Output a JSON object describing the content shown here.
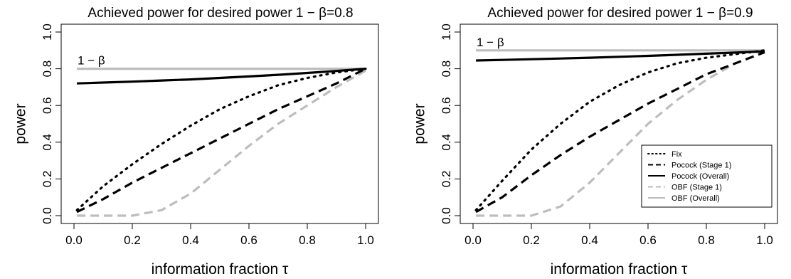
{
  "chart_data": [
    {
      "type": "line",
      "title": "Achieved power for desired power 1 − β=0.8",
      "xlabel": "information fraction τ",
      "ylabel": "power",
      "xlim": [
        0,
        1
      ],
      "ylim": [
        0,
        1
      ],
      "xticks": [
        "0.0",
        "0.2",
        "0.4",
        "0.6",
        "0.8",
        "1.0"
      ],
      "yticks": [
        "0.0",
        "0.2",
        "0.4",
        "0.6",
        "0.8",
        "1.0"
      ],
      "grid": false,
      "annotation": "1 − β",
      "x": [
        0.01,
        0.1,
        0.2,
        0.3,
        0.4,
        0.5,
        0.6,
        0.7,
        0.8,
        0.9,
        1.0
      ],
      "series": [
        {
          "name": "Fix",
          "style": "dotted",
          "color": "#000000",
          "values": [
            0.03,
            0.16,
            0.28,
            0.39,
            0.49,
            0.58,
            0.65,
            0.71,
            0.75,
            0.78,
            0.8
          ]
        },
        {
          "name": "Pocock (Stage 1)",
          "style": "dashed",
          "color": "#000000",
          "values": [
            0.02,
            0.09,
            0.18,
            0.26,
            0.34,
            0.42,
            0.5,
            0.58,
            0.65,
            0.72,
            0.8
          ]
        },
        {
          "name": "Pocock (Overall)",
          "style": "solid",
          "color": "#000000",
          "values": [
            0.72,
            0.725,
            0.73,
            0.736,
            0.742,
            0.75,
            0.758,
            0.767,
            0.777,
            0.788,
            0.8
          ]
        },
        {
          "name": "OBF (Stage 1)",
          "style": "dashed",
          "color": "#bdbdbd",
          "values": [
            0.0,
            0.0,
            0.0,
            0.03,
            0.12,
            0.25,
            0.38,
            0.5,
            0.6,
            0.7,
            0.79
          ]
        },
        {
          "name": "OBF (Overall)",
          "style": "solid",
          "color": "#bdbdbd",
          "values": [
            0.8,
            0.8,
            0.8,
            0.8,
            0.8,
            0.8,
            0.8,
            0.8,
            0.8,
            0.8,
            0.8
          ]
        }
      ]
    },
    {
      "type": "line",
      "title": "Achieved power for desired power 1 − β=0.9",
      "xlabel": "information fraction τ",
      "ylabel": "power",
      "xlim": [
        0,
        1
      ],
      "ylim": [
        0,
        1
      ],
      "xticks": [
        "0.0",
        "0.2",
        "0.4",
        "0.6",
        "0.8",
        "1.0"
      ],
      "yticks": [
        "0.0",
        "0.2",
        "0.4",
        "0.6",
        "0.8",
        "1.0"
      ],
      "grid": false,
      "annotation": "1 − β",
      "legend": "bottom-right",
      "x": [
        0.01,
        0.1,
        0.2,
        0.3,
        0.4,
        0.5,
        0.6,
        0.7,
        0.8,
        0.9,
        1.0
      ],
      "series": [
        {
          "name": "Fix",
          "style": "dotted",
          "color": "#000000",
          "values": [
            0.03,
            0.19,
            0.36,
            0.5,
            0.62,
            0.71,
            0.78,
            0.83,
            0.86,
            0.88,
            0.9
          ]
        },
        {
          "name": "Pocock (Stage 1)",
          "style": "dashed",
          "color": "#000000",
          "values": [
            0.02,
            0.1,
            0.22,
            0.33,
            0.43,
            0.52,
            0.61,
            0.69,
            0.77,
            0.83,
            0.89
          ]
        },
        {
          "name": "Pocock (Overall)",
          "style": "solid",
          "color": "#000000",
          "values": [
            0.845,
            0.848,
            0.852,
            0.856,
            0.86,
            0.865,
            0.87,
            0.876,
            0.882,
            0.888,
            0.895
          ]
        },
        {
          "name": "OBF (Stage 1)",
          "style": "dashed",
          "color": "#bdbdbd",
          "values": [
            0.0,
            0.0,
            0.0,
            0.05,
            0.18,
            0.34,
            0.5,
            0.63,
            0.74,
            0.83,
            0.89
          ]
        },
        {
          "name": "OBF (Overall)",
          "style": "solid",
          "color": "#bdbdbd",
          "values": [
            0.9,
            0.9,
            0.9,
            0.9,
            0.9,
            0.9,
            0.9,
            0.9,
            0.9,
            0.9,
            0.9
          ]
        }
      ]
    }
  ]
}
